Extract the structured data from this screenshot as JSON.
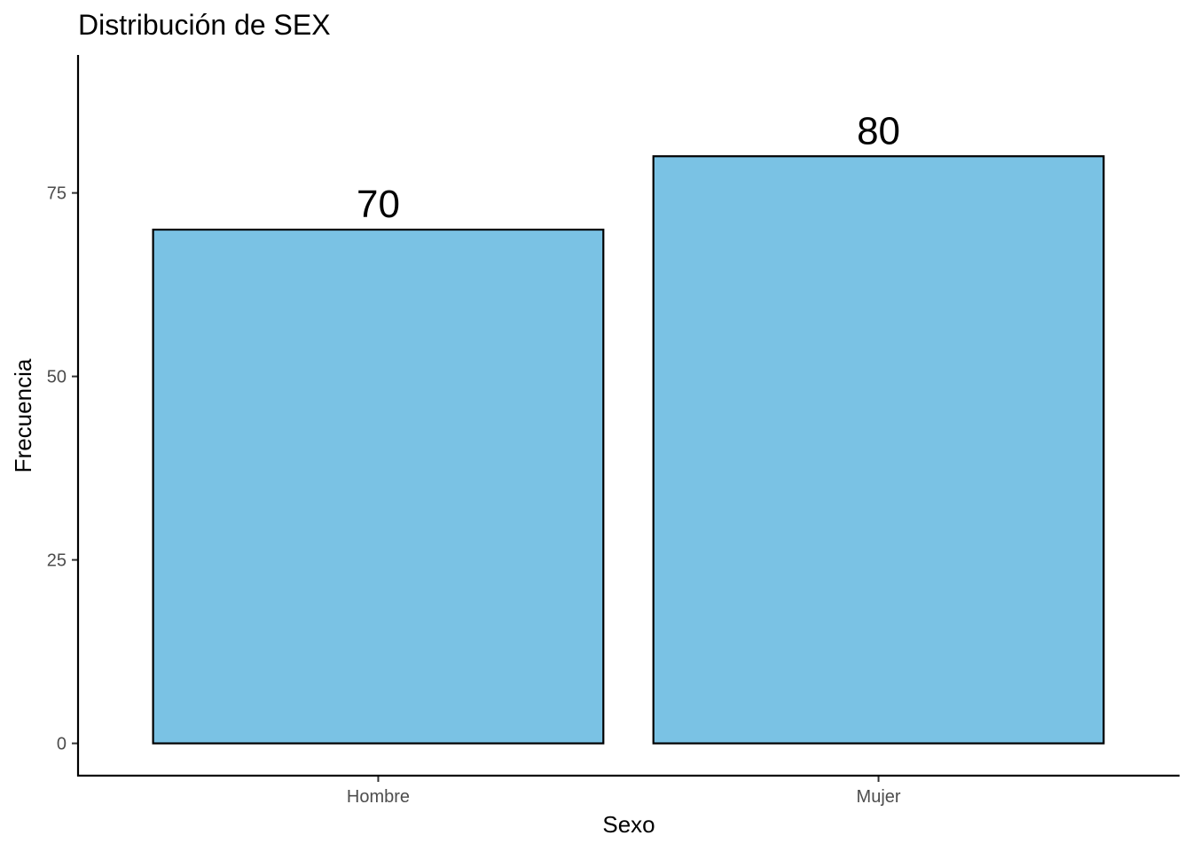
{
  "chart_data": {
    "type": "bar",
    "title": "Distribución de SEX",
    "xlabel": "Sexo",
    "ylabel": "Frecuencia",
    "categories": [
      "Hombre",
      "Mujer"
    ],
    "values": [
      70,
      80
    ],
    "data_labels": [
      "70",
      "80"
    ],
    "y_ticks": [
      0,
      25,
      50,
      75
    ],
    "y_tick_labels": [
      "0",
      "25",
      "50",
      "75"
    ],
    "ylim": [
      -4.4,
      93.8
    ],
    "grid": false,
    "legend": "none",
    "bar_fill": "#7AC2E4",
    "bar_outline": "#000000"
  }
}
